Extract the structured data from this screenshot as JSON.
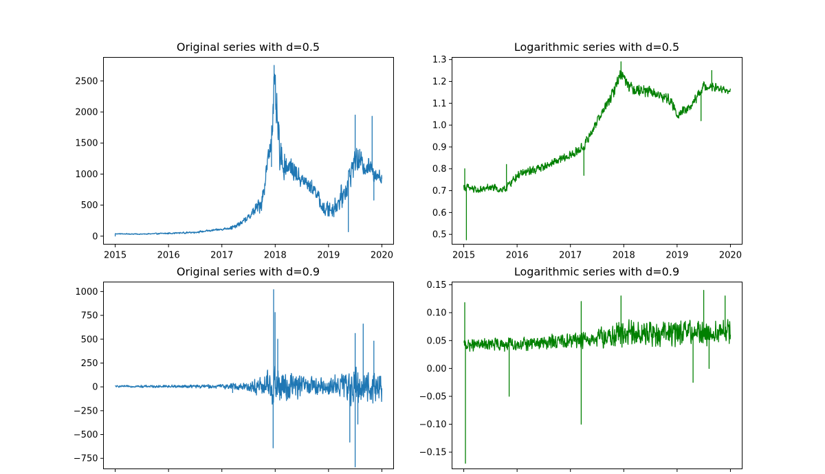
{
  "chart_data": [
    {
      "type": "line",
      "title": "Original series with d=0.5",
      "color": "#1f77b4",
      "x_range": [
        2015.0,
        2020.0
      ],
      "xlim": [
        2014.78,
        2020.22
      ],
      "ylim": [
        -130,
        2880
      ],
      "xticks": [
        "2015",
        "2016",
        "2017",
        "2018",
        "2019",
        "2020"
      ],
      "yticks": [
        0,
        500,
        1000,
        1500,
        2000,
        2500
      ],
      "show_xtick_labels": true,
      "profile": [
        [
          2015.0,
          38
        ],
        [
          2015.5,
          33
        ],
        [
          2016.0,
          45
        ],
        [
          2016.5,
          62
        ],
        [
          2017.0,
          110
        ],
        [
          2017.25,
          150
        ],
        [
          2017.5,
          300
        ],
        [
          2017.75,
          550
        ],
        [
          2017.93,
          1600
        ],
        [
          2017.98,
          2400
        ],
        [
          2018.1,
          1200
        ],
        [
          2018.3,
          1100
        ],
        [
          2018.5,
          900
        ],
        [
          2018.75,
          750
        ],
        [
          2018.9,
          420
        ],
        [
          2019.1,
          450
        ],
        [
          2019.3,
          700
        ],
        [
          2019.5,
          1250
        ],
        [
          2019.75,
          1100
        ],
        [
          2020.0,
          950
        ]
      ],
      "noise": [
        [
          2015.0,
          8
        ],
        [
          2017.0,
          20
        ],
        [
          2017.5,
          60
        ],
        [
          2017.9,
          250
        ],
        [
          2018.0,
          450
        ],
        [
          2018.3,
          180
        ],
        [
          2018.8,
          120
        ],
        [
          2019.4,
          240
        ],
        [
          2020.0,
          170
        ]
      ],
      "spikes": [
        [
          2015.0,
          2
        ],
        [
          2017.98,
          2750
        ],
        [
          2017.93,
          1120
        ],
        [
          2018.03,
          2300
        ],
        [
          2019.37,
          70
        ],
        [
          2019.5,
          1950
        ],
        [
          2019.82,
          1930
        ],
        [
          2019.85,
          580
        ],
        [
          2019.1,
          320
        ]
      ]
    },
    {
      "type": "line",
      "title": "Logarithmic series with d=0.5",
      "color": "#008000",
      "x_range": [
        2015.0,
        2020.0
      ],
      "xlim": [
        2014.78,
        2020.22
      ],
      "ylim": [
        0.455,
        1.31
      ],
      "xticks": [
        "2015",
        "2016",
        "2017",
        "2018",
        "2019",
        "2020"
      ],
      "yticks": [
        0.5,
        0.6,
        0.7,
        0.8,
        0.9,
        1.0,
        1.1,
        1.2,
        1.3
      ],
      "show_xtick_labels": true,
      "profile": [
        [
          2015.0,
          0.72
        ],
        [
          2015.25,
          0.7
        ],
        [
          2015.5,
          0.715
        ],
        [
          2015.75,
          0.7
        ],
        [
          2016.0,
          0.77
        ],
        [
          2016.5,
          0.81
        ],
        [
          2017.0,
          0.86
        ],
        [
          2017.25,
          0.9
        ],
        [
          2017.5,
          1.02
        ],
        [
          2017.75,
          1.12
        ],
        [
          2017.95,
          1.24
        ],
        [
          2018.15,
          1.17
        ],
        [
          2018.5,
          1.15
        ],
        [
          2018.85,
          1.12
        ],
        [
          2019.0,
          1.05
        ],
        [
          2019.25,
          1.08
        ],
        [
          2019.5,
          1.18
        ],
        [
          2019.75,
          1.17
        ],
        [
          2020.0,
          1.15
        ]
      ],
      "noise": [
        [
          2015.0,
          0.02
        ],
        [
          2017.5,
          0.025
        ],
        [
          2018.0,
          0.035
        ],
        [
          2019.0,
          0.025
        ],
        [
          2020.0,
          0.02
        ]
      ],
      "spikes": [
        [
          2015.05,
          0.475
        ],
        [
          2015.02,
          0.8
        ],
        [
          2015.8,
          0.82
        ],
        [
          2017.25,
          0.77
        ],
        [
          2017.95,
          1.29
        ],
        [
          2019.45,
          1.02
        ],
        [
          2019.65,
          1.25
        ]
      ]
    },
    {
      "type": "line",
      "title": "Original series with d=0.9",
      "color": "#1f77b4",
      "x_range": [
        2015.0,
        2020.0
      ],
      "xlim": [
        2014.78,
        2020.22
      ],
      "ylim": [
        -860,
        1100
      ],
      "xticks": [
        "2015",
        "2016",
        "2017",
        "2018",
        "2019",
        "2020"
      ],
      "yticks": [
        -750,
        -500,
        -250,
        0,
        250,
        500,
        750,
        1000
      ],
      "show_xtick_labels": false,
      "profile": [
        [
          2015.0,
          5
        ],
        [
          2020.0,
          5
        ]
      ],
      "noise": [
        [
          2015.0,
          10
        ],
        [
          2017.0,
          25
        ],
        [
          2017.5,
          60
        ],
        [
          2017.9,
          200
        ],
        [
          2018.0,
          280
        ],
        [
          2018.3,
          160
        ],
        [
          2018.8,
          100
        ],
        [
          2019.2,
          150
        ],
        [
          2019.4,
          220
        ],
        [
          2020.0,
          170
        ]
      ],
      "spikes": [
        [
          2017.97,
          1020
        ],
        [
          2018.0,
          780
        ],
        [
          2017.96,
          -640
        ],
        [
          2018.05,
          500
        ],
        [
          2017.2,
          -60
        ],
        [
          2019.4,
          -580
        ],
        [
          2019.5,
          560
        ],
        [
          2019.65,
          660
        ],
        [
          2019.5,
          -840
        ],
        [
          2019.85,
          480
        ],
        [
          2019.55,
          -390
        ]
      ]
    },
    {
      "type": "line",
      "title": "Logarithmic series with d=0.9",
      "color": "#008000",
      "x_range": [
        2015.0,
        2020.0
      ],
      "xlim": [
        2014.78,
        2020.22
      ],
      "ylim": [
        -0.18,
        0.155
      ],
      "xticks": [
        "2015",
        "2016",
        "2017",
        "2018",
        "2019",
        "2020"
      ],
      "yticks": [
        -0.15,
        -0.1,
        -0.05,
        0.0,
        0.05,
        0.1,
        0.15
      ],
      "show_xtick_labels": false,
      "profile": [
        [
          2015.0,
          0.042
        ],
        [
          2016.0,
          0.043
        ],
        [
          2017.0,
          0.05
        ],
        [
          2018.0,
          0.06
        ],
        [
          2019.0,
          0.063
        ],
        [
          2020.0,
          0.065
        ]
      ],
      "noise": [
        [
          2015.0,
          0.012
        ],
        [
          2017.0,
          0.015
        ],
        [
          2017.5,
          0.02
        ],
        [
          2018.0,
          0.03
        ],
        [
          2019.0,
          0.025
        ],
        [
          2020.0,
          0.025
        ]
      ],
      "spikes": [
        [
          2015.03,
          -0.17
        ],
        [
          2015.02,
          0.118
        ],
        [
          2015.85,
          -0.05
        ],
        [
          2017.2,
          -0.1
        ],
        [
          2017.2,
          0.12
        ],
        [
          2017.95,
          0.13
        ],
        [
          2019.5,
          0.14
        ],
        [
          2019.3,
          -0.025
        ],
        [
          2019.9,
          0.13
        ],
        [
          2019.6,
          0.0
        ]
      ]
    }
  ]
}
